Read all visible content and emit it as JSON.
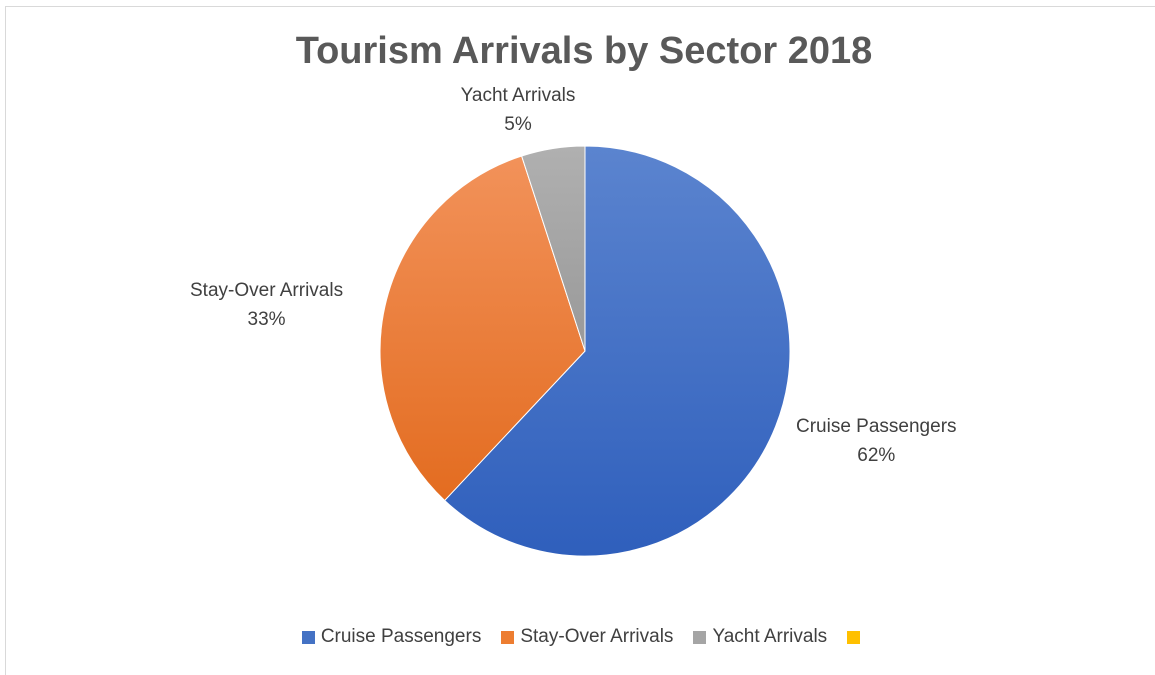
{
  "chart_data": {
    "type": "pie",
    "title": "Tourism Arrivals by Sector 2018",
    "slices": [
      {
        "name": "Cruise Passengers",
        "value": 62,
        "label": "62%",
        "color": "#4472C4"
      },
      {
        "name": "Stay-Over Arrivals",
        "value": 33,
        "label": "33%",
        "color": "#ED7D31"
      },
      {
        "name": "Yacht Arrivals",
        "value": 5,
        "label": "5%",
        "color": "#A5A5A5"
      }
    ],
    "legend": {
      "placement": "bottom",
      "entries": [
        {
          "name": "Cruise Passengers",
          "color": "#4472C4"
        },
        {
          "name": "Stay-Over Arrivals",
          "color": "#ED7D31"
        },
        {
          "name": "Yacht Arrivals",
          "color": "#A5A5A5"
        },
        {
          "name": "",
          "color": "#FFC000"
        }
      ]
    }
  }
}
